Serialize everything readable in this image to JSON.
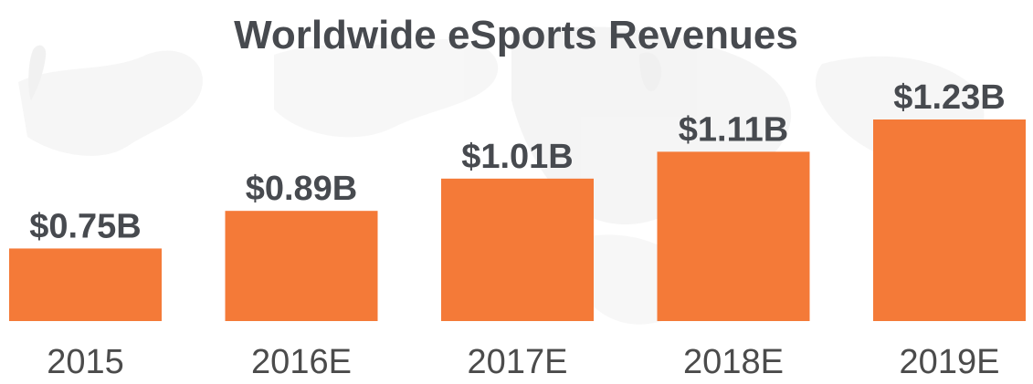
{
  "chart_data": {
    "type": "bar",
    "title": "Worldwide eSports Revenues",
    "categories": [
      "2015",
      "2016E",
      "2017E",
      "2018E",
      "2019E"
    ],
    "values": [
      0.75,
      0.89,
      1.01,
      1.11,
      1.23
    ],
    "value_labels": [
      "$0.75B",
      "$0.89B",
      "$1.01B",
      "$1.11B",
      "$1.23B"
    ],
    "ylim": [
      0.48,
      1.23
    ],
    "grid": false,
    "colors": {
      "bar": "#f47a38",
      "text": "#474a4f",
      "background": "#ffffff",
      "map_watermark": "#ececec"
    }
  }
}
